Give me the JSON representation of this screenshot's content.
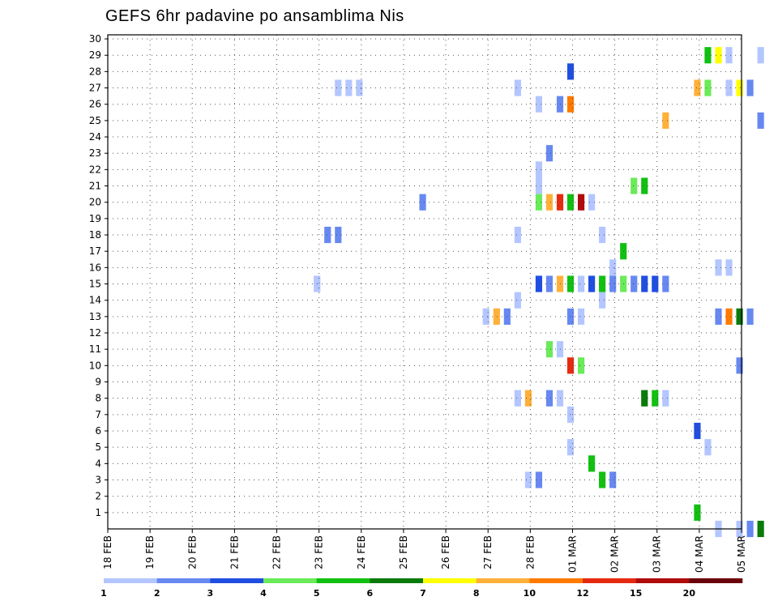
{
  "chart_data": {
    "type": "heatmap",
    "title": "GEFS 6hr padavine po ansamblima Nis",
    "grid": true,
    "x_step_hours": 6,
    "x_ticks": [
      "18 FEB",
      "19 FEB",
      "20 FEB",
      "21 FEB",
      "22 FEB",
      "23 FEB",
      "24 FEB",
      "25 FEB",
      "26 FEB",
      "27 FEB",
      "28 FEB",
      "01 MAR",
      "02 MAR",
      "03 MAR",
      "04 MAR",
      "05 MAR"
    ],
    "y_ticks": [
      "1",
      "2",
      "3",
      "4",
      "5",
      "6",
      "7",
      "8",
      "9",
      "10",
      "11",
      "12",
      "13",
      "14",
      "15",
      "16",
      "17",
      "18",
      "19",
      "20",
      "21",
      "22",
      "23",
      "24",
      "25",
      "26",
      "27",
      "28",
      "29",
      "30"
    ],
    "y_range": [
      0,
      30
    ],
    "colorbar": {
      "bounds": [
        1,
        2,
        3,
        4,
        5,
        6,
        7,
        8,
        10,
        12,
        15,
        20
      ],
      "labels": [
        "1",
        "2",
        "3",
        "4",
        "5",
        "6",
        "7",
        "8",
        "10",
        "12",
        "15",
        "20"
      ],
      "colors": [
        "#b3c6ff",
        "#6688f0",
        "#1f4ee0",
        "#6bea5a",
        "#12c012",
        "#0a7a0a",
        "#ffff00",
        "#ffb03a",
        "#ff7a00",
        "#e62a10",
        "#b00c0c",
        "#6a0008"
      ]
    },
    "cells": [
      {
        "member": 0,
        "x": "04 MAR 00Z",
        "t": 58,
        "v": 1.5
      },
      {
        "member": 0,
        "x": "04 MAR 12Z",
        "t": 60,
        "v": 1.5
      },
      {
        "member": 0,
        "x": "04 MAR 18Z",
        "t": 61,
        "v": 2.5
      },
      {
        "member": 0,
        "x": "05 MAR 00Z",
        "t": 62,
        "v": 6.5
      },
      {
        "member": 1,
        "x": "03 MAR 12Z",
        "t": 56,
        "v": 5.5
      },
      {
        "member": 3,
        "x": "28 FEB 00Z",
        "t": 40,
        "v": 1.5
      },
      {
        "member": 3,
        "x": "28 FEB 06Z",
        "t": 41,
        "v": 2.5
      },
      {
        "member": 3,
        "x": "01 MAR 18Z",
        "t": 47,
        "v": 5.5
      },
      {
        "member": 3,
        "x": "02 MAR 00Z",
        "t": 48,
        "v": 2.5
      },
      {
        "member": 4,
        "x": "01 MAR 12Z",
        "t": 46,
        "v": 5.5
      },
      {
        "member": 5,
        "x": "01 MAR 00Z",
        "t": 44,
        "v": 1.5
      },
      {
        "member": 5,
        "x": "03 MAR 18Z",
        "t": 57,
        "v": 1.5
      },
      {
        "member": 6,
        "x": "03 MAR 12Z",
        "t": 56,
        "v": 3.5
      },
      {
        "member": 7,
        "x": "01 MAR 00Z",
        "t": 44,
        "v": 1.5
      },
      {
        "member": 8,
        "x": "27 FEB 18Z",
        "t": 39,
        "v": 1.5
      },
      {
        "member": 8,
        "x": "28 FEB 00Z",
        "t": 40,
        "v": 8.5
      },
      {
        "member": 8,
        "x": "28 FEB 12Z",
        "t": 42,
        "v": 2.5
      },
      {
        "member": 8,
        "x": "28 FEB 18Z",
        "t": 43,
        "v": 1.5
      },
      {
        "member": 8,
        "x": "02 MAR 18Z",
        "t": 51,
        "v": 6.5
      },
      {
        "member": 8,
        "x": "03 MAR 00Z",
        "t": 52,
        "v": 5.5
      },
      {
        "member": 8,
        "x": "03 MAR 06Z",
        "t": 53,
        "v": 1.5
      },
      {
        "member": 10,
        "x": "01 MAR 00Z",
        "t": 44,
        "v": 13.0
      },
      {
        "member": 10,
        "x": "01 MAR 06Z",
        "t": 45,
        "v": 4.5
      },
      {
        "member": 10,
        "x": "04 MAR 12Z",
        "t": 60,
        "v": 2.5
      },
      {
        "member": 11,
        "x": "28 FEB 12Z",
        "t": 42,
        "v": 4.5
      },
      {
        "member": 11,
        "x": "28 FEB 18Z",
        "t": 43,
        "v": 1.5
      },
      {
        "member": 13,
        "x": "27 FEB 00Z",
        "t": 36,
        "v": 1.5
      },
      {
        "member": 13,
        "x": "27 FEB 06Z",
        "t": 37,
        "v": 9.0
      },
      {
        "member": 13,
        "x": "27 FEB 12Z",
        "t": 38,
        "v": 2.5
      },
      {
        "member": 13,
        "x": "01 MAR 00Z",
        "t": 44,
        "v": 2.5
      },
      {
        "member": 13,
        "x": "01 MAR 06Z",
        "t": 45,
        "v": 1.5
      },
      {
        "member": 13,
        "x": "04 MAR 00Z",
        "t": 58,
        "v": 2.5
      },
      {
        "member": 13,
        "x": "04 MAR 06Z",
        "t": 59,
        "v": 11.0
      },
      {
        "member": 13,
        "x": "04 MAR 12Z",
        "t": 60,
        "v": 6.5
      },
      {
        "member": 13,
        "x": "04 MAR 18Z",
        "t": 61,
        "v": 2.5
      },
      {
        "member": 14,
        "x": "27 FEB 18Z",
        "t": 39,
        "v": 1.5
      },
      {
        "member": 14,
        "x": "01 MAR 18Z",
        "t": 47,
        "v": 1.5
      },
      {
        "member": 15,
        "x": "23 FEB 00Z",
        "t": 20,
        "v": 1.5
      },
      {
        "member": 15,
        "x": "28 FEB 06Z",
        "t": 41,
        "v": 3.5
      },
      {
        "member": 15,
        "x": "28 FEB 12Z",
        "t": 42,
        "v": 2.5
      },
      {
        "member": 15,
        "x": "28 FEB 18Z",
        "t": 43,
        "v": 9.0
      },
      {
        "member": 15,
        "x": "01 MAR 00Z",
        "t": 44,
        "v": 5.5
      },
      {
        "member": 15,
        "x": "01 MAR 06Z",
        "t": 45,
        "v": 1.5
      },
      {
        "member": 15,
        "x": "01 MAR 12Z",
        "t": 46,
        "v": 3.5
      },
      {
        "member": 15,
        "x": "01 MAR 18Z",
        "t": 47,
        "v": 5.5
      },
      {
        "member": 15,
        "x": "02 MAR 00Z",
        "t": 48,
        "v": 2.5
      },
      {
        "member": 15,
        "x": "02 MAR 06Z",
        "t": 49,
        "v": 4.5
      },
      {
        "member": 15,
        "x": "02 MAR 12Z",
        "t": 50,
        "v": 2.5
      },
      {
        "member": 15,
        "x": "02 MAR 18Z",
        "t": 51,
        "v": 3.5
      },
      {
        "member": 15,
        "x": "03 MAR 00Z",
        "t": 52,
        "v": 3.5
      },
      {
        "member": 15,
        "x": "03 MAR 06Z",
        "t": 53,
        "v": 2.5
      },
      {
        "member": 16,
        "x": "02 MAR 00Z",
        "t": 48,
        "v": 1.5
      },
      {
        "member": 16,
        "x": "04 MAR 00Z",
        "t": 58,
        "v": 1.5
      },
      {
        "member": 16,
        "x": "04 MAR 06Z",
        "t": 59,
        "v": 1.5
      },
      {
        "member": 17,
        "x": "02 MAR 06Z",
        "t": 49,
        "v": 5.5
      },
      {
        "member": 18,
        "x": "23 FEB 06Z",
        "t": 21,
        "v": 2.5
      },
      {
        "member": 18,
        "x": "23 FEB 12Z",
        "t": 22,
        "v": 2.5
      },
      {
        "member": 18,
        "x": "27 FEB 18Z",
        "t": 39,
        "v": 1.5
      },
      {
        "member": 18,
        "x": "01 MAR 18Z",
        "t": 47,
        "v": 1.5
      },
      {
        "member": 20,
        "x": "25 FEB 12Z",
        "t": 30,
        "v": 2.5
      },
      {
        "member": 20,
        "x": "28 FEB 06Z",
        "t": 41,
        "v": 4.5
      },
      {
        "member": 20,
        "x": "28 FEB 12Z",
        "t": 42,
        "v": 9.0
      },
      {
        "member": 20,
        "x": "28 FEB 18Z",
        "t": 43,
        "v": 13.0
      },
      {
        "member": 20,
        "x": "01 MAR 00Z",
        "t": 44,
        "v": 5.5
      },
      {
        "member": 20,
        "x": "01 MAR 06Z",
        "t": 45,
        "v": 17.0
      },
      {
        "member": 20,
        "x": "01 MAR 12Z",
        "t": 46,
        "v": 1.5
      },
      {
        "member": 21,
        "x": "28 FEB 06Z",
        "t": 41,
        "v": 1.5
      },
      {
        "member": 21,
        "x": "02 MAR 12Z",
        "t": 50,
        "v": 4.5
      },
      {
        "member": 21,
        "x": "02 MAR 18Z",
        "t": 51,
        "v": 5.5
      },
      {
        "member": 22,
        "x": "28 FEB 06Z",
        "t": 41,
        "v": 1.5
      },
      {
        "member": 23,
        "x": "28 FEB 12Z",
        "t": 42,
        "v": 2.5
      },
      {
        "member": 25,
        "x": "03 MAR 06Z",
        "t": 53,
        "v": 8.5
      },
      {
        "member": 25,
        "x": "05 MAR 00Z",
        "t": 62,
        "v": 2.5
      },
      {
        "member": 26,
        "x": "28 FEB 06Z",
        "t": 41,
        "v": 1.5
      },
      {
        "member": 26,
        "x": "28 FEB 18Z",
        "t": 43,
        "v": 2.5
      },
      {
        "member": 26,
        "x": "01 MAR 00Z",
        "t": 44,
        "v": 11.0
      },
      {
        "member": 27,
        "x": "23 FEB 12Z",
        "t": 22,
        "v": 1.5
      },
      {
        "member": 27,
        "x": "23 FEB 18Z",
        "t": 23,
        "v": 1.5
      },
      {
        "member": 27,
        "x": "24 FEB 00Z",
        "t": 24,
        "v": 1.5
      },
      {
        "member": 27,
        "x": "27 FEB 18Z",
        "t": 39,
        "v": 1.5
      },
      {
        "member": 27,
        "x": "03 MAR 12Z",
        "t": 56,
        "v": 9.0
      },
      {
        "member": 27,
        "x": "03 MAR 18Z",
        "t": 57,
        "v": 4.5
      },
      {
        "member": 27,
        "x": "04 MAR 06Z",
        "t": 59,
        "v": 1.5
      },
      {
        "member": 27,
        "x": "04 MAR 12Z",
        "t": 60,
        "v": 7.5
      },
      {
        "member": 27,
        "x": "04 MAR 18Z",
        "t": 61,
        "v": 2.5
      },
      {
        "member": 28,
        "x": "01 MAR 00Z",
        "t": 44,
        "v": 3.5
      },
      {
        "member": 29,
        "x": "03 MAR 18Z",
        "t": 57,
        "v": 5.5
      },
      {
        "member": 29,
        "x": "04 MAR 00Z",
        "t": 58,
        "v": 7.5
      },
      {
        "member": 29,
        "x": "04 MAR 06Z",
        "t": 59,
        "v": 1.5
      },
      {
        "member": 29,
        "x": "05 MAR 00Z",
        "t": 62,
        "v": 1.5
      }
    ]
  }
}
